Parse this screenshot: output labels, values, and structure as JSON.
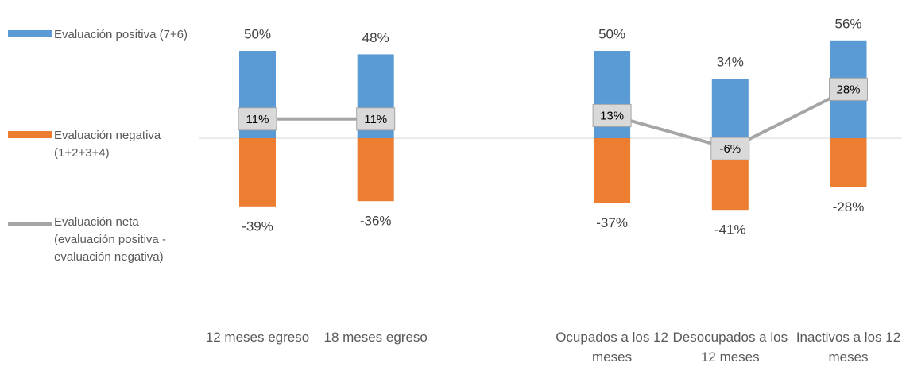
{
  "chart_data": {
    "type": "bar",
    "categories": [
      "12 meses egreso",
      "18 meses egreso",
      null,
      "Ocupados a los 12 meses",
      "Desocupados a los 12 meses",
      "Inactivos a los 12 meses"
    ],
    "series": [
      {
        "name": "Evaluación positiva (7+6)",
        "color": "#5b9bd5",
        "type": "bar",
        "values": [
          50,
          48,
          null,
          50,
          34,
          56
        ],
        "value_labels": [
          "50%",
          "48%",
          null,
          "50%",
          "34%",
          "56%"
        ]
      },
      {
        "name": "Evaluación negativa (1+2+3+4)",
        "color": "#ed7d31",
        "type": "bar",
        "values": [
          -39,
          -36,
          null,
          -37,
          -41,
          -28
        ],
        "value_labels": [
          "-39%",
          "-36%",
          null,
          "-37%",
          "-41%",
          "-28%"
        ]
      },
      {
        "name": "Evaluación neta (evaluación positiva - evaluación negativa)",
        "color": "#a5a5a5",
        "type": "line",
        "values": [
          11,
          11,
          null,
          13,
          -6,
          28
        ],
        "value_labels": [
          "11%",
          "11%",
          null,
          "13%",
          "-6%",
          "28%"
        ]
      }
    ]
  }
}
